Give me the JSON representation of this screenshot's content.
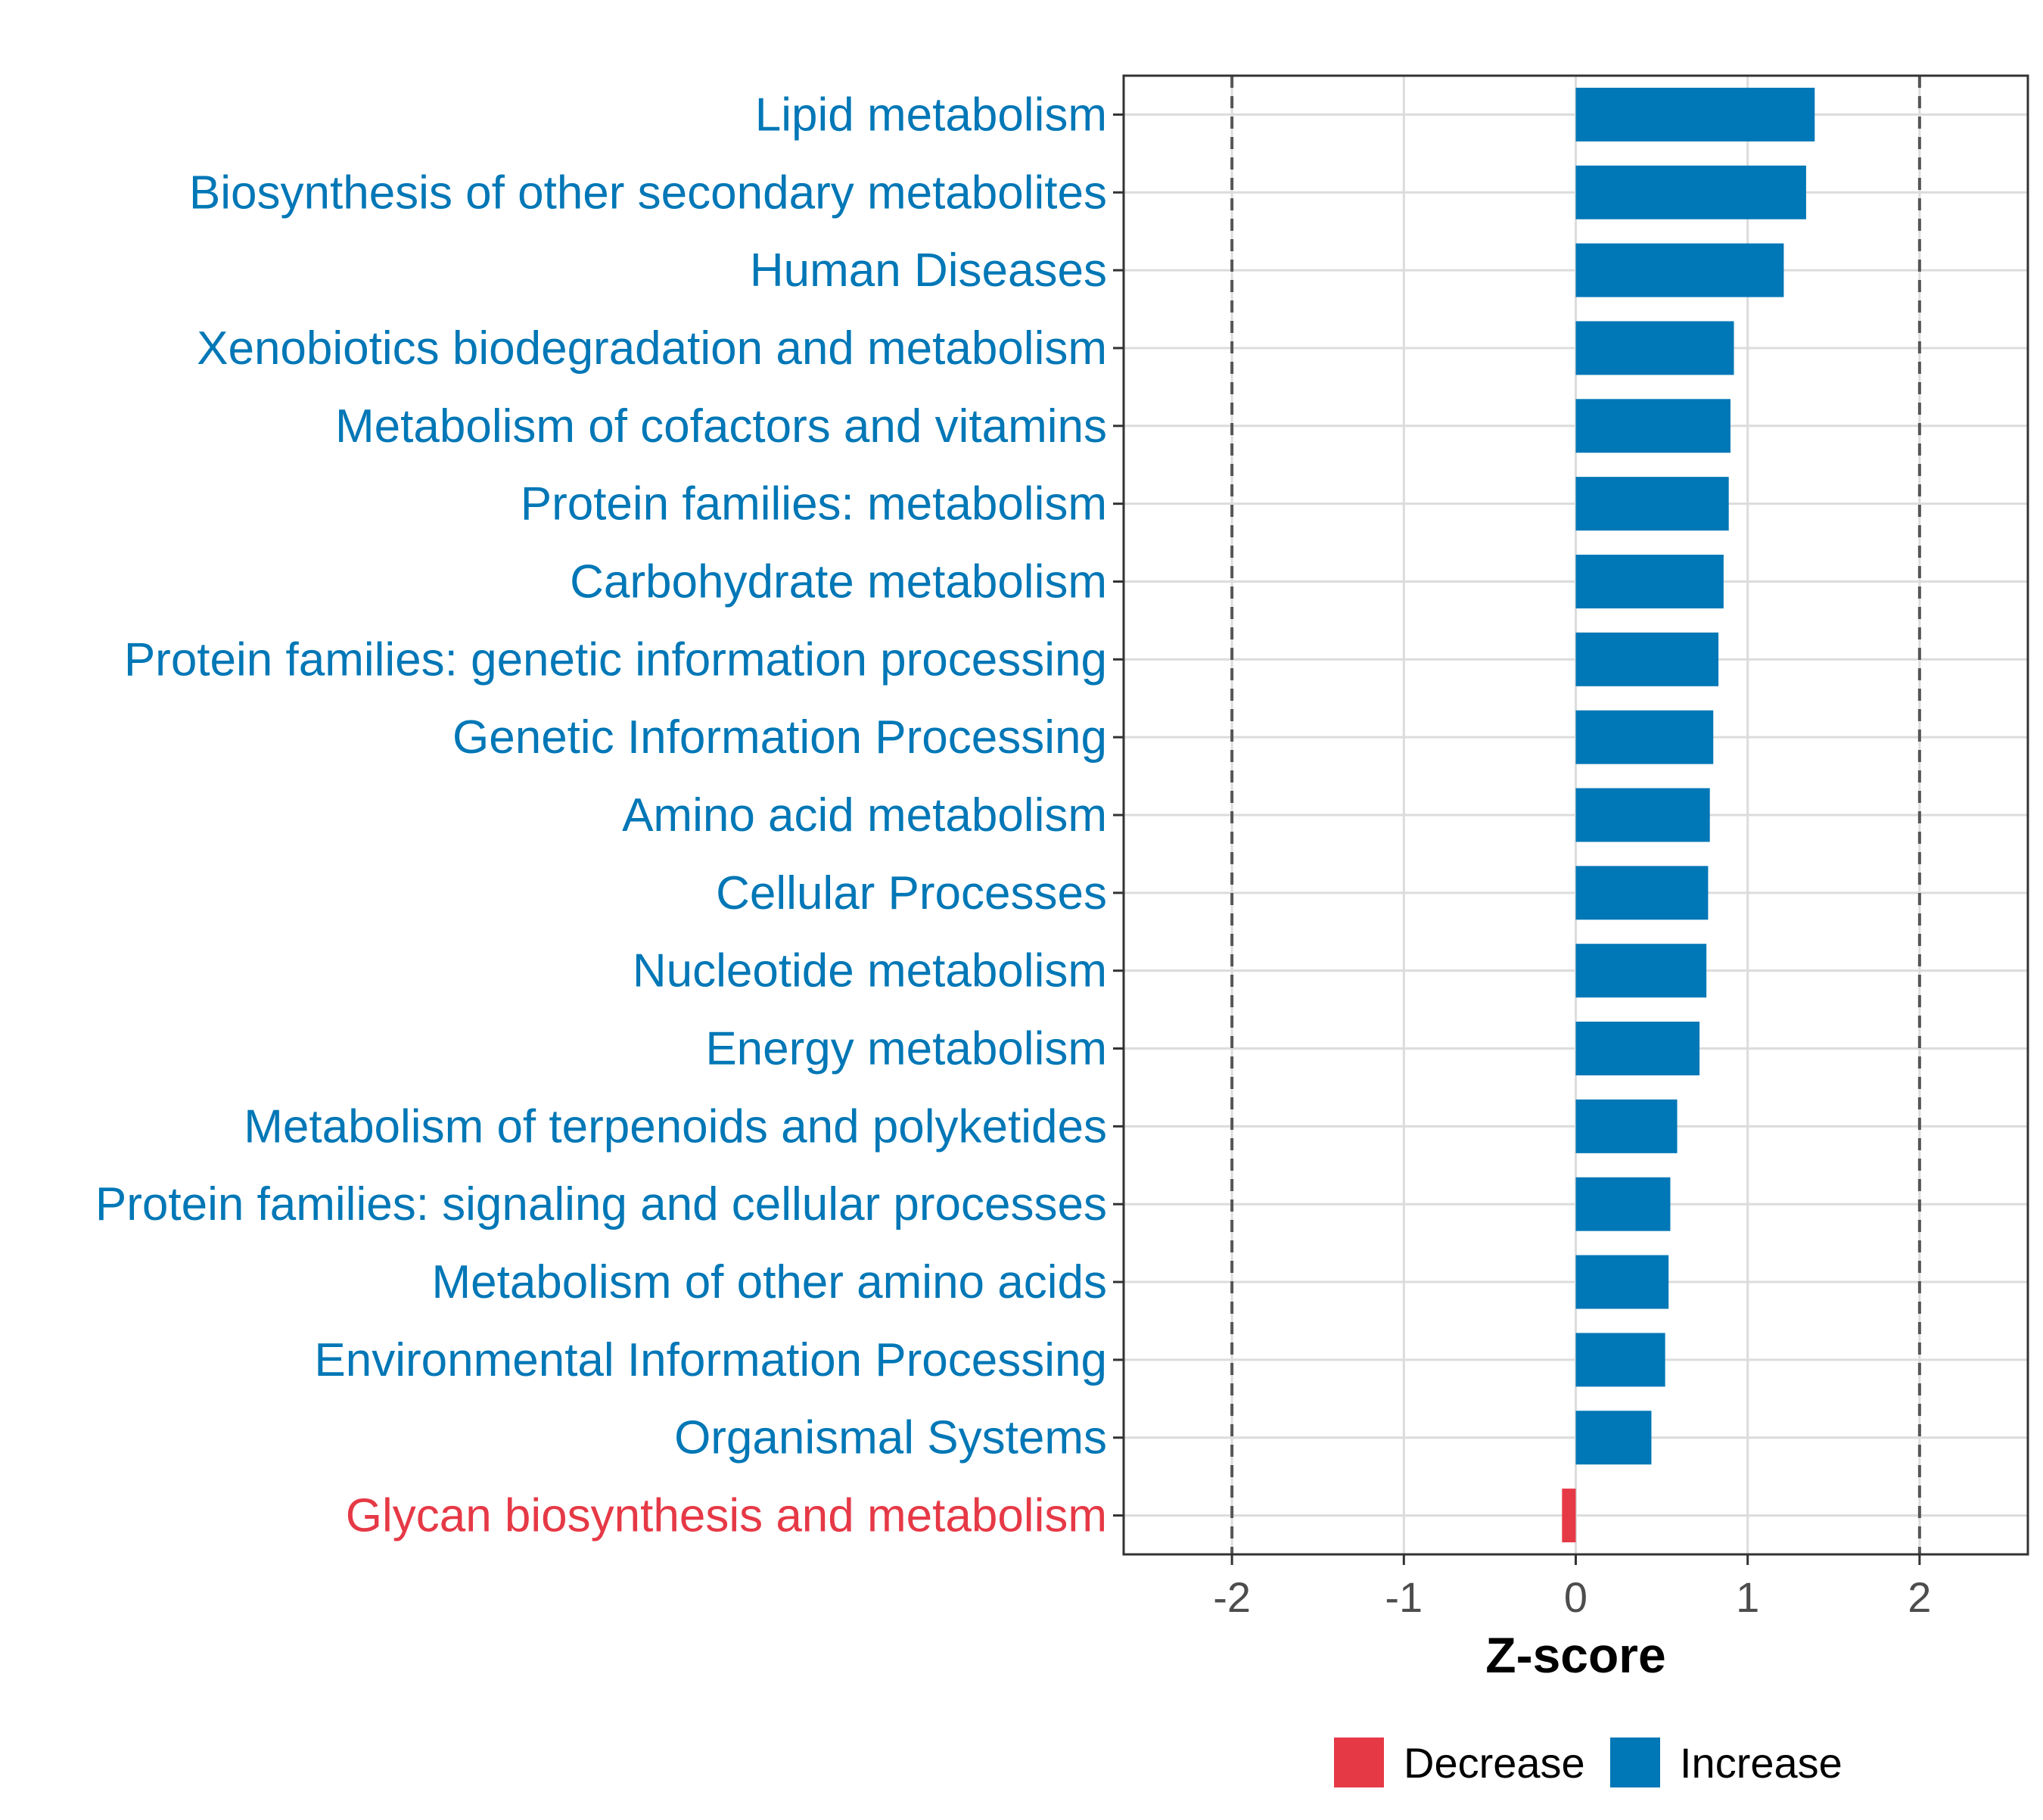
{
  "chart_data": {
    "type": "bar",
    "orientation": "horizontal",
    "categories": [
      "Lipid metabolism",
      "Biosynthesis of other secondary metabolites",
      "Human Diseases",
      "Xenobiotics biodegradation and metabolism",
      "Metabolism of cofactors and vitamins",
      "Protein families: metabolism",
      "Carbohydrate metabolism",
      "Protein families: genetic information processing",
      "Genetic Information Processing",
      "Amino acid metabolism",
      "Cellular Processes",
      "Nucleotide metabolism",
      "Energy metabolism",
      "Metabolism of terpenoids and polyketides",
      "Protein families: signaling and cellular processes",
      "Metabolism of other amino acids",
      "Environmental Information Processing",
      "Organismal Systems",
      "Glycan biosynthesis and metabolism"
    ],
    "values": [
      1.39,
      1.34,
      1.21,
      0.92,
      0.9,
      0.89,
      0.86,
      0.83,
      0.8,
      0.78,
      0.77,
      0.76,
      0.72,
      0.59,
      0.55,
      0.54,
      0.52,
      0.44,
      -0.08
    ],
    "direction": [
      "Increase",
      "Increase",
      "Increase",
      "Increase",
      "Increase",
      "Increase",
      "Increase",
      "Increase",
      "Increase",
      "Increase",
      "Increase",
      "Increase",
      "Increase",
      "Increase",
      "Increase",
      "Increase",
      "Increase",
      "Increase",
      "Decrease"
    ],
    "xlabel": "Z-score",
    "ylabel": "",
    "title": "",
    "xlim": [
      -2.63,
      2.63
    ],
    "xticks": [
      -2,
      -1,
      0,
      1,
      2
    ],
    "xtick_labels": [
      "-2",
      "-1",
      "0",
      "1",
      "2"
    ],
    "threshold_lines": [
      -2,
      2
    ],
    "grid": true,
    "legend": {
      "placement": "bottom",
      "entries": [
        {
          "label": "Decrease",
          "color": "#E63946"
        },
        {
          "label": "Increase",
          "color": "#0077B6"
        }
      ]
    },
    "colors": {
      "Increase": "#0077B6",
      "Decrease": "#E63946",
      "grid": "#dcdcdc",
      "threshold": "#555555",
      "panel_border": "#333333"
    }
  }
}
